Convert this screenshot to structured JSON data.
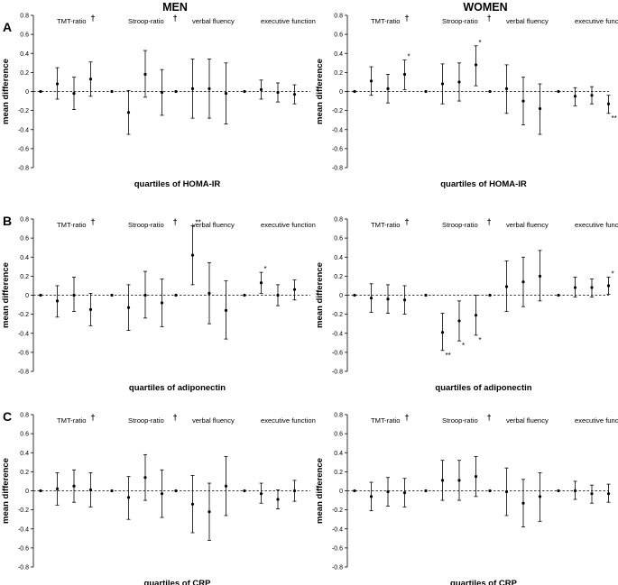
{
  "column_titles": [
    "MEN",
    "WOMEN"
  ],
  "row_labels": [
    "A",
    "B",
    "C"
  ],
  "chart_data": [
    {
      "type": "scatter",
      "sex": "MEN",
      "panel": "A",
      "xlabel": "quartiles of HOMA-IR",
      "ylabel": "mean difference",
      "yticks": [
        "0.8",
        "0.6",
        "0.4",
        "0.2",
        "0",
        "-0.2",
        "-0.4",
        "-0.6",
        "-0.8"
      ],
      "ylim": [
        -0.8,
        0.8
      ],
      "groups": [
        {
          "name": "TMT-ratio",
          "dagger": "†",
          "points": [
            {
              "q": 1,
              "mean": 0,
              "lo": 0,
              "hi": 0,
              "sig": ""
            },
            {
              "q": 2,
              "mean": 0.08,
              "lo": -0.08,
              "hi": 0.25,
              "sig": ""
            },
            {
              "q": 3,
              "mean": -0.02,
              "lo": -0.19,
              "hi": 0.15,
              "sig": ""
            },
            {
              "q": 4,
              "mean": 0.13,
              "lo": -0.05,
              "hi": 0.31,
              "sig": ""
            }
          ]
        },
        {
          "name": "Stroop-ratio",
          "dagger": "†",
          "points": [
            {
              "q": 1,
              "mean": 0,
              "lo": 0,
              "hi": 0,
              "sig": ""
            },
            {
              "q": 2,
              "mean": -0.22,
              "lo": -0.45,
              "hi": 0.01,
              "sig": ""
            },
            {
              "q": 3,
              "mean": 0.18,
              "lo": -0.06,
              "hi": 0.43,
              "sig": ""
            },
            {
              "q": 4,
              "mean": -0.01,
              "lo": -0.25,
              "hi": 0.23,
              "sig": ""
            }
          ]
        },
        {
          "name": "verbal fluency",
          "dagger": "",
          "points": [
            {
              "q": 1,
              "mean": 0,
              "lo": 0,
              "hi": 0,
              "sig": ""
            },
            {
              "q": 2,
              "mean": 0.03,
              "lo": -0.28,
              "hi": 0.34,
              "sig": ""
            },
            {
              "q": 3,
              "mean": 0.03,
              "lo": -0.28,
              "hi": 0.34,
              "sig": ""
            },
            {
              "q": 4,
              "mean": -0.02,
              "lo": -0.34,
              "hi": 0.3,
              "sig": ""
            }
          ]
        },
        {
          "name": "executive function",
          "dagger": "",
          "points": [
            {
              "q": 1,
              "mean": 0,
              "lo": 0,
              "hi": 0,
              "sig": ""
            },
            {
              "q": 2,
              "mean": 0.02,
              "lo": -0.08,
              "hi": 0.12,
              "sig": ""
            },
            {
              "q": 3,
              "mean": -0.01,
              "lo": -0.11,
              "hi": 0.09,
              "sig": ""
            },
            {
              "q": 4,
              "mean": -0.03,
              "lo": -0.13,
              "hi": 0.07,
              "sig": ""
            }
          ]
        }
      ]
    },
    {
      "type": "scatter",
      "sex": "WOMEN",
      "panel": "A",
      "xlabel": "quartiles of HOMA-IR",
      "ylabel": "mean difference",
      "yticks": [
        "0.8",
        "0.6",
        "0.4",
        "0.2",
        "0",
        "-0.2",
        "-0.4",
        "-0.6",
        "-0.8"
      ],
      "ylim": [
        -0.8,
        0.8
      ],
      "groups": [
        {
          "name": "TMT-ratio",
          "dagger": "†",
          "points": [
            {
              "q": 1,
              "mean": 0,
              "lo": 0,
              "hi": 0,
              "sig": ""
            },
            {
              "q": 2,
              "mean": 0.11,
              "lo": -0.04,
              "hi": 0.26,
              "sig": ""
            },
            {
              "q": 3,
              "mean": 0.03,
              "lo": -0.12,
              "hi": 0.18,
              "sig": ""
            },
            {
              "q": 4,
              "mean": 0.18,
              "lo": 0.02,
              "hi": 0.33,
              "sig": "*"
            }
          ]
        },
        {
          "name": "Stroop-ratio",
          "dagger": "†",
          "points": [
            {
              "q": 1,
              "mean": 0,
              "lo": 0,
              "hi": 0,
              "sig": ""
            },
            {
              "q": 2,
              "mean": 0.08,
              "lo": -0.13,
              "hi": 0.29,
              "sig": ""
            },
            {
              "q": 3,
              "mean": 0.1,
              "lo": -0.1,
              "hi": 0.3,
              "sig": ""
            },
            {
              "q": 4,
              "mean": 0.28,
              "lo": 0.06,
              "hi": 0.48,
              "sig": "*"
            }
          ]
        },
        {
          "name": "verbal fluency",
          "dagger": "",
          "points": [
            {
              "q": 1,
              "mean": 0,
              "lo": 0,
              "hi": 0,
              "sig": ""
            },
            {
              "q": 2,
              "mean": 0.03,
              "lo": -0.23,
              "hi": 0.28,
              "sig": ""
            },
            {
              "q": 3,
              "mean": -0.1,
              "lo": -0.35,
              "hi": 0.15,
              "sig": ""
            },
            {
              "q": 4,
              "mean": -0.18,
              "lo": -0.45,
              "hi": 0.08,
              "sig": ""
            }
          ]
        },
        {
          "name": "executive function",
          "dagger": "",
          "points": [
            {
              "q": 1,
              "mean": 0,
              "lo": 0,
              "hi": 0,
              "sig": ""
            },
            {
              "q": 2,
              "mean": -0.05,
              "lo": -0.15,
              "hi": 0.04,
              "sig": ""
            },
            {
              "q": 3,
              "mean": -0.04,
              "lo": -0.13,
              "hi": 0.05,
              "sig": ""
            },
            {
              "q": 4,
              "mean": -0.13,
              "lo": -0.23,
              "hi": -0.04,
              "sig": "**"
            }
          ]
        }
      ]
    },
    {
      "type": "scatter",
      "sex": "MEN",
      "panel": "B",
      "xlabel": "quartiles of adiponectin",
      "ylabel": "mean difference",
      "yticks": [
        "0.8",
        "0.6",
        "0.4",
        "0.2",
        "0",
        "-0.2",
        "-0.4",
        "-0.6",
        "-0.8"
      ],
      "ylim": [
        -0.8,
        0.8
      ],
      "groups": [
        {
          "name": "TMT-ratio",
          "dagger": "†",
          "points": [
            {
              "q": 1,
              "mean": 0,
              "lo": 0,
              "hi": 0,
              "sig": ""
            },
            {
              "q": 2,
              "mean": -0.06,
              "lo": -0.23,
              "hi": 0.1,
              "sig": ""
            },
            {
              "q": 3,
              "mean": 0,
              "lo": -0.17,
              "hi": 0.19,
              "sig": ""
            },
            {
              "q": 4,
              "mean": -0.15,
              "lo": -0.32,
              "hi": 0.02,
              "sig": ""
            }
          ]
        },
        {
          "name": "Stroop-ratio",
          "dagger": "†",
          "points": [
            {
              "q": 1,
              "mean": 0,
              "lo": 0,
              "hi": 0,
              "sig": ""
            },
            {
              "q": 2,
              "mean": -0.13,
              "lo": -0.37,
              "hi": 0.11,
              "sig": ""
            },
            {
              "q": 3,
              "mean": 0,
              "lo": -0.24,
              "hi": 0.25,
              "sig": ""
            },
            {
              "q": 4,
              "mean": -0.08,
              "lo": -0.33,
              "hi": 0.17,
              "sig": ""
            }
          ]
        },
        {
          "name": "verbal fluency",
          "dagger": "",
          "points": [
            {
              "q": 1,
              "mean": 0,
              "lo": 0,
              "hi": 0,
              "sig": ""
            },
            {
              "q": 2,
              "mean": 0.42,
              "lo": 0.11,
              "hi": 0.73,
              "sig": "**"
            },
            {
              "q": 3,
              "mean": 0.02,
              "lo": -0.3,
              "hi": 0.34,
              "sig": ""
            },
            {
              "q": 4,
              "mean": -0.16,
              "lo": -0.46,
              "hi": 0.15,
              "sig": ""
            }
          ]
        },
        {
          "name": "executive function",
          "dagger": "",
          "points": [
            {
              "q": 1,
              "mean": 0,
              "lo": 0,
              "hi": 0,
              "sig": ""
            },
            {
              "q": 2,
              "mean": 0.13,
              "lo": 0.02,
              "hi": 0.24,
              "sig": "*"
            },
            {
              "q": 3,
              "mean": 0,
              "lo": -0.11,
              "hi": 0.11,
              "sig": ""
            },
            {
              "q": 4,
              "mean": 0.06,
              "lo": -0.05,
              "hi": 0.16,
              "sig": ""
            }
          ]
        }
      ]
    },
    {
      "type": "scatter",
      "sex": "WOMEN",
      "panel": "B",
      "xlabel": "quartiles of adiponectin",
      "ylabel": "mean difference",
      "yticks": [
        "0.8",
        "0.6",
        "0.4",
        "0.2",
        "0",
        "-0.2",
        "-0.4",
        "-0.6",
        "-0.8"
      ],
      "ylim": [
        -0.8,
        0.8
      ],
      "groups": [
        {
          "name": "TMT-ratio",
          "dagger": "†",
          "points": [
            {
              "q": 1,
              "mean": 0,
              "lo": 0,
              "hi": 0,
              "sig": ""
            },
            {
              "q": 2,
              "mean": -0.03,
              "lo": -0.18,
              "hi": 0.12,
              "sig": ""
            },
            {
              "q": 3,
              "mean": -0.04,
              "lo": -0.19,
              "hi": 0.11,
              "sig": ""
            },
            {
              "q": 4,
              "mean": -0.05,
              "lo": -0.2,
              "hi": 0.1,
              "sig": ""
            }
          ]
        },
        {
          "name": "Stroop-ratio",
          "dagger": "†",
          "points": [
            {
              "q": 1,
              "mean": 0,
              "lo": 0,
              "hi": 0,
              "sig": ""
            },
            {
              "q": 2,
              "mean": -0.39,
              "lo": -0.58,
              "hi": -0.19,
              "sig": "**"
            },
            {
              "q": 3,
              "mean": -0.27,
              "lo": -0.48,
              "hi": -0.06,
              "sig": "*"
            },
            {
              "q": 4,
              "mean": -0.21,
              "lo": -0.42,
              "hi": 0,
              "sig": "*"
            }
          ]
        },
        {
          "name": "verbal fluency",
          "dagger": "",
          "points": [
            {
              "q": 1,
              "mean": 0,
              "lo": 0,
              "hi": 0,
              "sig": ""
            },
            {
              "q": 2,
              "mean": 0.09,
              "lo": -0.17,
              "hi": 0.36,
              "sig": ""
            },
            {
              "q": 3,
              "mean": 0.14,
              "lo": -0.12,
              "hi": 0.4,
              "sig": ""
            },
            {
              "q": 4,
              "mean": 0.2,
              "lo": -0.06,
              "hi": 0.47,
              "sig": ""
            }
          ]
        },
        {
          "name": "executive function",
          "dagger": "",
          "points": [
            {
              "q": 1,
              "mean": 0,
              "lo": 0,
              "hi": 0,
              "sig": ""
            },
            {
              "q": 2,
              "mean": 0.08,
              "lo": -0.02,
              "hi": 0.19,
              "sig": ""
            },
            {
              "q": 3,
              "mean": 0.08,
              "lo": -0.02,
              "hi": 0.17,
              "sig": ""
            },
            {
              "q": 4,
              "mean": 0.1,
              "lo": 0.01,
              "hi": 0.19,
              "sig": "*"
            }
          ]
        }
      ]
    },
    {
      "type": "scatter",
      "sex": "MEN",
      "panel": "C",
      "xlabel": "quartiles of CRP",
      "ylabel": "mean difference",
      "yticks": [
        "0.8",
        "0.6",
        "0.4",
        "0.2",
        "0",
        "-0.2",
        "-0.4",
        "-0.6",
        "-0.8"
      ],
      "ylim": [
        -0.8,
        0.8
      ],
      "groups": [
        {
          "name": "TMT-ratio",
          "dagger": "†",
          "points": [
            {
              "q": 1,
              "mean": 0,
              "lo": 0,
              "hi": 0,
              "sig": ""
            },
            {
              "q": 2,
              "mean": 0.02,
              "lo": -0.15,
              "hi": 0.19,
              "sig": ""
            },
            {
              "q": 3,
              "mean": 0.05,
              "lo": -0.12,
              "hi": 0.22,
              "sig": ""
            },
            {
              "q": 4,
              "mean": 0.01,
              "lo": -0.17,
              "hi": 0.19,
              "sig": ""
            }
          ]
        },
        {
          "name": "Stroop-ratio",
          "dagger": "†",
          "points": [
            {
              "q": 1,
              "mean": 0,
              "lo": 0,
              "hi": 0,
              "sig": ""
            },
            {
              "q": 2,
              "mean": -0.07,
              "lo": -0.3,
              "hi": 0.15,
              "sig": ""
            },
            {
              "q": 3,
              "mean": 0.14,
              "lo": -0.1,
              "hi": 0.38,
              "sig": ""
            },
            {
              "q": 4,
              "mean": -0.03,
              "lo": -0.28,
              "hi": 0.22,
              "sig": ""
            }
          ]
        },
        {
          "name": "verbal fluency",
          "dagger": "",
          "points": [
            {
              "q": 1,
              "mean": 0,
              "lo": 0,
              "hi": 0,
              "sig": ""
            },
            {
              "q": 2,
              "mean": -0.14,
              "lo": -0.44,
              "hi": 0.16,
              "sig": ""
            },
            {
              "q": 3,
              "mean": -0.22,
              "lo": -0.52,
              "hi": 0.08,
              "sig": ""
            },
            {
              "q": 4,
              "mean": 0.05,
              "lo": -0.26,
              "hi": 0.36,
              "sig": ""
            }
          ]
        },
        {
          "name": "executive function",
          "dagger": "",
          "points": [
            {
              "q": 1,
              "mean": 0,
              "lo": 0,
              "hi": 0,
              "sig": ""
            },
            {
              "q": 2,
              "mean": -0.03,
              "lo": -0.13,
              "hi": 0.08,
              "sig": ""
            },
            {
              "q": 3,
              "mean": -0.09,
              "lo": -0.19,
              "hi": 0.01,
              "sig": ""
            },
            {
              "q": 4,
              "mean": 0,
              "lo": -0.11,
              "hi": 0.11,
              "sig": ""
            }
          ]
        }
      ]
    },
    {
      "type": "scatter",
      "sex": "WOMEN",
      "panel": "C",
      "xlabel": "quartiles of CRP",
      "ylabel": "mean difference",
      "yticks": [
        "0.8",
        "0.6",
        "0.4",
        "0.2",
        "0",
        "-0.2",
        "-0.4",
        "-0.6",
        "-0.8"
      ],
      "ylim": [
        -0.8,
        0.8
      ],
      "groups": [
        {
          "name": "TMT-ratio",
          "dagger": "†",
          "points": [
            {
              "q": 1,
              "mean": 0,
              "lo": 0,
              "hi": 0,
              "sig": ""
            },
            {
              "q": 2,
              "mean": -0.06,
              "lo": -0.21,
              "hi": 0.09,
              "sig": ""
            },
            {
              "q": 3,
              "mean": -0.01,
              "lo": -0.16,
              "hi": 0.14,
              "sig": ""
            },
            {
              "q": 4,
              "mean": -0.02,
              "lo": -0.17,
              "hi": 0.13,
              "sig": ""
            }
          ]
        },
        {
          "name": "Stroop-ratio",
          "dagger": "†",
          "points": [
            {
              "q": 1,
              "mean": 0,
              "lo": 0,
              "hi": 0,
              "sig": ""
            },
            {
              "q": 2,
              "mean": 0.11,
              "lo": -0.1,
              "hi": 0.32,
              "sig": ""
            },
            {
              "q": 3,
              "mean": 0.11,
              "lo": -0.1,
              "hi": 0.32,
              "sig": ""
            },
            {
              "q": 4,
              "mean": 0.15,
              "lo": -0.06,
              "hi": 0.36,
              "sig": ""
            }
          ]
        },
        {
          "name": "verbal fluency",
          "dagger": "",
          "points": [
            {
              "q": 1,
              "mean": 0,
              "lo": 0,
              "hi": 0,
              "sig": ""
            },
            {
              "q": 2,
              "mean": -0.01,
              "lo": -0.26,
              "hi": 0.24,
              "sig": ""
            },
            {
              "q": 3,
              "mean": -0.13,
              "lo": -0.38,
              "hi": 0.12,
              "sig": ""
            },
            {
              "q": 4,
              "mean": -0.06,
              "lo": -0.32,
              "hi": 0.19,
              "sig": ""
            }
          ]
        },
        {
          "name": "executive function",
          "dagger": "",
          "points": [
            {
              "q": 1,
              "mean": 0,
              "lo": 0,
              "hi": 0,
              "sig": ""
            },
            {
              "q": 2,
              "mean": 0,
              "lo": -0.09,
              "hi": 0.1,
              "sig": ""
            },
            {
              "q": 3,
              "mean": -0.03,
              "lo": -0.13,
              "hi": 0.06,
              "sig": ""
            },
            {
              "q": 4,
              "mean": -0.03,
              "lo": -0.12,
              "hi": 0.07,
              "sig": ""
            }
          ]
        }
      ]
    }
  ]
}
